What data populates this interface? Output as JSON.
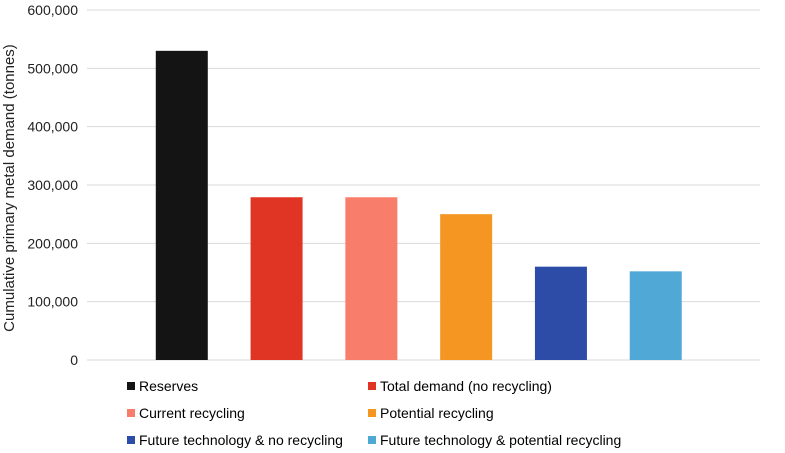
{
  "chart_data": {
    "type": "bar",
    "title": "",
    "xlabel": "",
    "ylabel": "Cumulative primary metal demand (tonnes)",
    "ylim": [
      0,
      600000
    ],
    "yticks": [
      0,
      100000,
      200000,
      300000,
      400000,
      500000,
      600000
    ],
    "ytick_labels": [
      "0",
      "100,000",
      "200,000",
      "300,000",
      "400,000",
      "500,000",
      "600,000"
    ],
    "grid": true,
    "legend_position": "bottom",
    "series": [
      {
        "name": "Reserves",
        "value": 530000,
        "color": "#141414"
      },
      {
        "name": "Total demand (no recycling)",
        "value": 279000,
        "color": "#e03524"
      },
      {
        "name": "Current recycling",
        "value": 279000,
        "color": "#f87d6a"
      },
      {
        "name": "Potential recycling",
        "value": 250000,
        "color": "#f59623"
      },
      {
        "name": "Future technology & no recycling",
        "value": 160000,
        "color": "#2d4ca8"
      },
      {
        "name": "Future technology & potential recycling",
        "value": 152000,
        "color": "#50a8d6"
      }
    ]
  }
}
